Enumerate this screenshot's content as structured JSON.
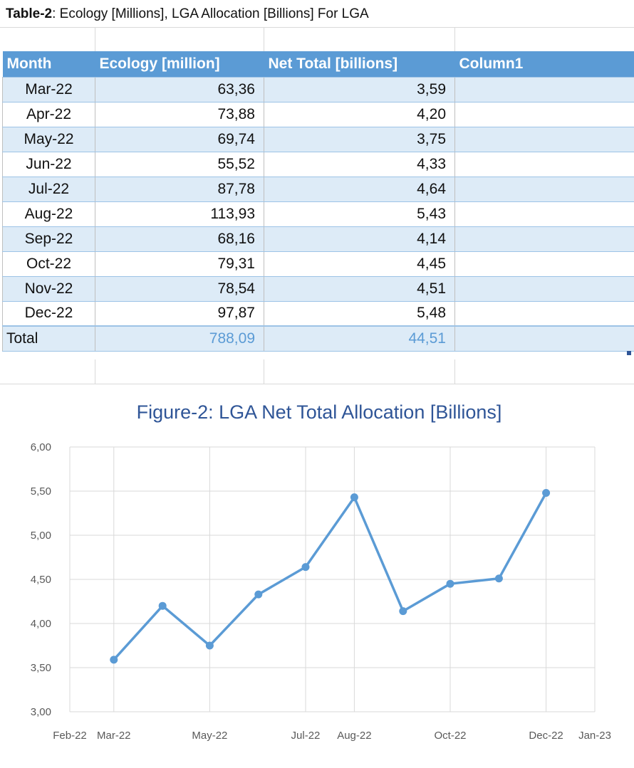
{
  "table": {
    "title_bold": "Table-2",
    "title_rest": ": Ecology [Millions], LGA Allocation [Billions] For LGA",
    "headers": [
      "Month",
      "Ecology [million]",
      "Net Total [billions]",
      "Column1"
    ],
    "rows": [
      {
        "month": "Mar-22",
        "ecology": "63,36",
        "net": "3,59",
        "col1": ""
      },
      {
        "month": "Apr-22",
        "ecology": "73,88",
        "net": "4,20",
        "col1": ""
      },
      {
        "month": "May-22",
        "ecology": "69,74",
        "net": "3,75",
        "col1": ""
      },
      {
        "month": "Jun-22",
        "ecology": "55,52",
        "net": "4,33",
        "col1": ""
      },
      {
        "month": "Jul-22",
        "ecology": "87,78",
        "net": "4,64",
        "col1": ""
      },
      {
        "month": "Aug-22",
        "ecology": "113,93",
        "net": "5,43",
        "col1": ""
      },
      {
        "month": "Sep-22",
        "ecology": "68,16",
        "net": "4,14",
        "col1": ""
      },
      {
        "month": "Oct-22",
        "ecology": "79,31",
        "net": "4,45",
        "col1": ""
      },
      {
        "month": "Nov-22",
        "ecology": "78,54",
        "net": "4,51",
        "col1": ""
      },
      {
        "month": "Dec-22",
        "ecology": "97,87",
        "net": "5,48",
        "col1": ""
      }
    ],
    "total": {
      "label": "Total",
      "ecology": "788,09",
      "net": "44,51"
    }
  },
  "colors": {
    "header_bg": "#5b9bd5",
    "band_bg": "#ddebf7",
    "series_line": "#5b9bd5",
    "title_text": "#2f5597"
  },
  "chart_data": {
    "type": "line",
    "title": "Figure-2: LGA Net Total Allocation [Billions]",
    "xlabel": "",
    "ylabel": "",
    "x": [
      "2022-03-01",
      "2022-04-01",
      "2022-05-01",
      "2022-06-01",
      "2022-07-01",
      "2022-08-01",
      "2022-09-01",
      "2022-10-01",
      "2022-11-01",
      "2022-12-01"
    ],
    "series": [
      {
        "values": [
          3.59,
          4.2,
          3.75,
          4.33,
          4.64,
          5.43,
          4.14,
          4.45,
          4.51,
          5.48
        ]
      }
    ],
    "xlim": [
      "2022-02-01",
      "2023-01-01"
    ],
    "ylim": [
      3.0,
      6.0
    ],
    "x_ticks": [
      "2022-02-01",
      "2022-03-01",
      "2022-05-01",
      "2022-07-01",
      "2022-08-01",
      "2022-10-01",
      "2022-12-01",
      "2023-01-01"
    ],
    "x_tick_labels": [
      "Feb-22",
      "Mar-22",
      "May-22",
      "Jul-22",
      "Aug-22",
      "Oct-22",
      "Dec-22",
      "Jan-23"
    ],
    "y_ticks": [
      3.0,
      3.5,
      4.0,
      4.5,
      5.0,
      5.5,
      6.0
    ],
    "y_tick_labels": [
      "3,00",
      "3,50",
      "4,00",
      "4,50",
      "5,00",
      "5,50",
      "6,00"
    ],
    "grid": true,
    "legend": "none",
    "markers": true
  }
}
